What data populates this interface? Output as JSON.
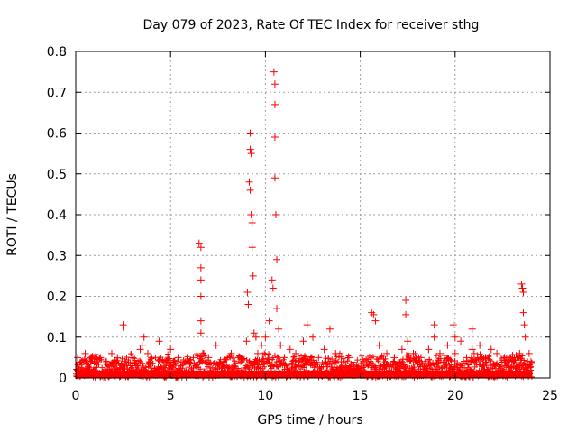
{
  "chart_data": {
    "type": "scatter",
    "title": "Day 079 of 2023, Rate Of TEC Index for receiver sthg",
    "xlabel": "GPS time / hours",
    "ylabel": "ROTI / TECUs",
    "xlim": [
      0,
      25
    ],
    "ylim": [
      0,
      0.8
    ],
    "xticks": [
      "0",
      "5",
      "10",
      "15",
      "20",
      "25"
    ],
    "yticks": [
      "0",
      "0.1",
      "0.2",
      "0.3",
      "0.4",
      "0.5",
      "0.6",
      "0.7",
      "0.8"
    ],
    "grid": true,
    "color": "#ff0000",
    "marker": "plus",
    "series": [
      {
        "x": [
          0.1,
          0.3,
          0.5,
          0.8,
          1.0,
          1.3,
          1.6,
          1.9,
          2.2,
          2.5,
          2.5,
          2.6,
          3.0,
          3.4,
          3.5,
          3.6,
          3.8,
          4.0,
          4.4,
          4.7,
          5.0,
          5.4,
          5.8,
          6.2,
          6.5,
          6.6,
          6.6,
          6.6,
          6.6,
          6.6,
          6.6,
          6.7,
          7.0,
          7.4,
          7.8,
          8.2,
          8.6,
          9.0,
          9.05,
          9.1,
          9.15,
          9.2,
          9.2,
          9.2,
          9.25,
          9.25,
          9.3,
          9.3,
          9.35,
          9.4,
          9.5,
          9.6,
          9.8,
          10.0,
          10.2,
          10.35,
          10.4,
          10.45,
          10.5,
          10.5,
          10.5,
          10.5,
          10.55,
          10.6,
          10.6,
          10.7,
          10.8,
          11.0,
          11.3,
          11.6,
          12.0,
          12.2,
          12.5,
          12.8,
          13.1,
          13.4,
          13.7,
          14.0,
          14.4,
          14.8,
          15.2,
          15.6,
          15.7,
          15.8,
          16.0,
          16.4,
          16.8,
          17.2,
          17.4,
          17.4,
          17.5,
          17.8,
          18.2,
          18.6,
          18.9,
          18.9,
          19.2,
          19.6,
          19.9,
          20.0,
          20.0,
          20.3,
          20.6,
          20.9,
          20.9,
          21.0,
          21.3,
          21.6,
          21.9,
          22.2,
          22.6,
          23.0,
          23.4,
          23.5,
          23.55,
          23.6,
          23.6,
          23.65,
          23.7,
          23.9,
          24.0
        ],
        "y": [
          0.05,
          0.04,
          0.06,
          0.05,
          0.04,
          0.05,
          0.04,
          0.06,
          0.05,
          0.13,
          0.125,
          0.04,
          0.05,
          0.07,
          0.08,
          0.1,
          0.06,
          0.05,
          0.09,
          0.04,
          0.07,
          0.05,
          0.04,
          0.05,
          0.33,
          0.32,
          0.27,
          0.2,
          0.14,
          0.11,
          0.24,
          0.06,
          0.05,
          0.08,
          0.04,
          0.06,
          0.05,
          0.09,
          0.21,
          0.18,
          0.48,
          0.6,
          0.56,
          0.46,
          0.55,
          0.4,
          0.38,
          0.32,
          0.25,
          0.11,
          0.1,
          0.06,
          0.08,
          0.1,
          0.14,
          0.24,
          0.22,
          0.75,
          0.72,
          0.67,
          0.59,
          0.49,
          0.4,
          0.29,
          0.17,
          0.12,
          0.08,
          0.05,
          0.07,
          0.06,
          0.09,
          0.13,
          0.1,
          0.05,
          0.07,
          0.12,
          0.06,
          0.04,
          0.05,
          0.03,
          0.04,
          0.16,
          0.155,
          0.14,
          0.08,
          0.06,
          0.05,
          0.07,
          0.19,
          0.155,
          0.09,
          0.06,
          0.05,
          0.07,
          0.13,
          0.1,
          0.06,
          0.08,
          0.13,
          0.1,
          0.06,
          0.09,
          0.05,
          0.12,
          0.07,
          0.06,
          0.08,
          0.05,
          0.07,
          0.06,
          0.05,
          0.04,
          0.06,
          0.23,
          0.22,
          0.21,
          0.16,
          0.13,
          0.1,
          0.06,
          0.04
        ]
      }
    ]
  }
}
